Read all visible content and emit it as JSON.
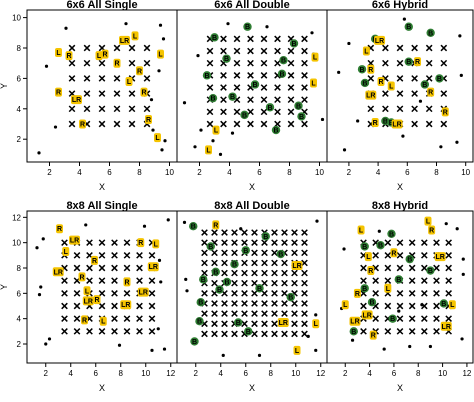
{
  "chart_data": [
    {
      "type": "scatter",
      "title": "6x6 All Single",
      "xlabel": "X",
      "ylabel": "Y",
      "xlim": [
        0.5,
        10.5
      ],
      "ylim": [
        0.5,
        10.5
      ],
      "xticks": [
        2,
        4,
        6,
        8,
        10
      ],
      "yticks": [
        2,
        4,
        6,
        8,
        10
      ],
      "grid": {
        "n": 6,
        "x": [
          3.5,
          4.5,
          5.5,
          6.5,
          7.5,
          8.5
        ],
        "y": [
          3,
          4,
          5,
          6,
          7,
          8
        ]
      },
      "points": [
        [
          1.3,
          1.1
        ],
        [
          2.4,
          2.8
        ],
        [
          1.8,
          6.8
        ],
        [
          3.1,
          9.3
        ],
        [
          7.1,
          9.6
        ],
        [
          9.6,
          8.6
        ],
        [
          9.4,
          9.5
        ],
        [
          9.3,
          6.5
        ],
        [
          9.7,
          1.9
        ],
        [
          9.5,
          1.3
        ],
        [
          8.9,
          2.6
        ],
        [
          8.8,
          4.6
        ]
      ],
      "tags": [
        {
          "x": 2.6,
          "y": 7.7,
          "label": "L"
        },
        {
          "x": 3.3,
          "y": 7.5,
          "label": "R"
        },
        {
          "x": 5.3,
          "y": 7.5,
          "label": "L"
        },
        {
          "x": 5.7,
          "y": 7.6,
          "label": "R"
        },
        {
          "x": 7.0,
          "y": 8.5,
          "label": "LR"
        },
        {
          "x": 7.7,
          "y": 8.8,
          "label": "L"
        },
        {
          "x": 6.5,
          "y": 7.0,
          "label": "R"
        },
        {
          "x": 8.0,
          "y": 6.5,
          "label": "R"
        },
        {
          "x": 9.4,
          "y": 7.6,
          "label": "L"
        },
        {
          "x": 7.3,
          "y": 5.8,
          "label": "L"
        },
        {
          "x": 8.3,
          "y": 5.1,
          "label": "R"
        },
        {
          "x": 2.6,
          "y": 5.1,
          "label": "R"
        },
        {
          "x": 3.8,
          "y": 4.6,
          "label": "LR"
        },
        {
          "x": 4.2,
          "y": 3.0,
          "label": "R"
        },
        {
          "x": 8.6,
          "y": 3.3,
          "label": "R"
        },
        {
          "x": 9.2,
          "y": 2.1,
          "label": "L"
        }
      ]
    },
    {
      "type": "scatter",
      "title": "6x6 All Double",
      "xlabel": "X",
      "ylabel": "",
      "xlim": [
        0.5,
        10.5
      ],
      "ylim": [
        0.5,
        10.5
      ],
      "xticks": [
        2,
        4,
        6,
        8,
        10
      ],
      "yticks": [],
      "grid": {
        "n": 8,
        "x": [
          2.7,
          3.6,
          4.5,
          5.4,
          6.3,
          7.2,
          8.1,
          9.0
        ],
        "y": [
          3,
          3.8,
          4.6,
          5.4,
          6.2,
          7.0,
          7.8,
          8.6
        ]
      },
      "points": [
        [
          1.0,
          4.4
        ],
        [
          1.9,
          7.5
        ],
        [
          2.1,
          2.6
        ],
        [
          4.2,
          2.4
        ],
        [
          3.9,
          9.6
        ],
        [
          6.5,
          9.4
        ],
        [
          9.5,
          9.0
        ],
        [
          9.6,
          7.6
        ],
        [
          10.2,
          3.3
        ],
        [
          3.4,
          1.0
        ],
        [
          1.7,
          1.5
        ],
        [
          2.9,
          1.9
        ]
      ],
      "tags": [
        {
          "x": 2.6,
          "y": 1.3,
          "label": "L"
        },
        {
          "x": 9.7,
          "y": 7.4,
          "label": "L"
        },
        {
          "x": 9.6,
          "y": 5.7,
          "label": "L"
        },
        {
          "x": 3.1,
          "y": 2.6,
          "label": "L"
        }
      ],
      "badges": [
        [
          3.0,
          8.7
        ],
        [
          3.8,
          7.3
        ],
        [
          2.5,
          6.2
        ],
        [
          2.9,
          4.7
        ],
        [
          4.2,
          4.8
        ],
        [
          5.7,
          5.6
        ],
        [
          6.7,
          4.1
        ],
        [
          7.5,
          6.3
        ],
        [
          8.3,
          8.3
        ],
        [
          7.6,
          7.2
        ],
        [
          5.2,
          9.4
        ],
        [
          8.6,
          4.2
        ],
        [
          8.8,
          3.5
        ],
        [
          5.0,
          3.6
        ],
        [
          7.1,
          2.6
        ]
      ]
    },
    {
      "type": "scatter",
      "title": "6x6 Hybrid",
      "xlabel": "X",
      "ylabel": "",
      "xlim": [
        0.5,
        10.5
      ],
      "ylim": [
        0.5,
        10.5
      ],
      "xticks": [
        2,
        4,
        6,
        8,
        10
      ],
      "yticks": [],
      "grid": {
        "n": 6,
        "x": [
          3.5,
          4.5,
          5.5,
          6.5,
          7.5,
          8.5
        ],
        "y": [
          3,
          4,
          5,
          6,
          7,
          8
        ]
      },
      "points": [
        [
          1.7,
          1.3
        ],
        [
          1.3,
          6.4
        ],
        [
          2.0,
          8.3
        ],
        [
          5.8,
          9.9
        ],
        [
          9.6,
          8.8
        ],
        [
          9.7,
          6.2
        ],
        [
          9.4,
          1.8
        ],
        [
          8.3,
          1.5
        ],
        [
          5.7,
          2.2
        ],
        [
          2.6,
          3.2
        ],
        [
          6.9,
          4.5
        ]
      ],
      "tags": [
        {
          "x": 3.2,
          "y": 7.8,
          "label": "L"
        },
        {
          "x": 4.1,
          "y": 8.5,
          "label": "LR"
        },
        {
          "x": 3.5,
          "y": 6.6,
          "label": "R"
        },
        {
          "x": 4.2,
          "y": 5.8,
          "label": "R"
        },
        {
          "x": 6.7,
          "y": 7.1,
          "label": "R"
        },
        {
          "x": 7.6,
          "y": 5.1,
          "label": "R"
        },
        {
          "x": 3.5,
          "y": 4.9,
          "label": "LR"
        },
        {
          "x": 3.8,
          "y": 3.1,
          "label": "R"
        },
        {
          "x": 5.3,
          "y": 3.0,
          "label": "LR"
        },
        {
          "x": 8.6,
          "y": 3.8,
          "label": "R"
        },
        {
          "x": 4.9,
          "y": 5.5,
          "label": "L"
        }
      ],
      "badges": [
        [
          6.1,
          9.4
        ],
        [
          3.8,
          8.6
        ],
        [
          2.9,
          6.6
        ],
        [
          3.1,
          5.7
        ],
        [
          7.6,
          9.0
        ],
        [
          8.2,
          6.0
        ],
        [
          4.5,
          3.2
        ],
        [
          4.9,
          3.1
        ],
        [
          7.2,
          5.6
        ],
        [
          6.1,
          7.1
        ]
      ]
    },
    {
      "type": "scatter",
      "title": "8x8 All Single",
      "xlabel": "X",
      "ylabel": "Y",
      "xlim": [
        0.5,
        12.5
      ],
      "ylim": [
        0.5,
        12.5
      ],
      "xticks": [
        2,
        4,
        6,
        8,
        10,
        12
      ],
      "yticks": [
        2,
        4,
        6,
        8,
        10,
        12
      ],
      "grid": {
        "n": 8,
        "x": [
          3.5,
          4.5,
          5.5,
          6.5,
          7.5,
          8.5,
          9.5,
          10.5
        ],
        "y": [
          3,
          4,
          5,
          6,
          7,
          8,
          9,
          10
        ]
      },
      "points": [
        [
          1.8,
          10.3
        ],
        [
          1.3,
          9.6
        ],
        [
          1.6,
          6.5
        ],
        [
          1.5,
          5.9
        ],
        [
          2.0,
          2.0
        ],
        [
          2.3,
          2.4
        ],
        [
          11.1,
          8.6
        ],
        [
          11.2,
          6.9
        ],
        [
          11.0,
          3.2
        ],
        [
          11.5,
          1.6
        ],
        [
          11.8,
          11.8
        ],
        [
          5.2,
          11.4
        ],
        [
          9.9,
          11.3
        ],
        [
          10.5,
          1.5
        ],
        [
          7.9,
          1.9
        ]
      ],
      "tags": [
        {
          "x": 3.1,
          "y": 11.1,
          "label": "R"
        },
        {
          "x": 4.3,
          "y": 10.2,
          "label": "LR"
        },
        {
          "x": 3.6,
          "y": 9.3,
          "label": "L"
        },
        {
          "x": 3.0,
          "y": 7.7,
          "label": "LR"
        },
        {
          "x": 5.3,
          "y": 6.2,
          "label": "L"
        },
        {
          "x": 5.4,
          "y": 5.4,
          "label": "LR"
        },
        {
          "x": 6.6,
          "y": 3.8,
          "label": "L"
        },
        {
          "x": 6.1,
          "y": 5.5,
          "label": "R"
        },
        {
          "x": 8.4,
          "y": 5.1,
          "label": "LR"
        },
        {
          "x": 9.6,
          "y": 10.0,
          "label": "R"
        },
        {
          "x": 10.8,
          "y": 9.9,
          "label": "L"
        },
        {
          "x": 10.6,
          "y": 8.1,
          "label": "LR"
        },
        {
          "x": 9.8,
          "y": 6.1,
          "label": "LR"
        },
        {
          "x": 8.5,
          "y": 6.9,
          "label": "R"
        },
        {
          "x": 5.1,
          "y": 3.9,
          "label": "R"
        },
        {
          "x": 5.9,
          "y": 8.6,
          "label": "R"
        },
        {
          "x": 4.9,
          "y": 7.3,
          "label": "R"
        }
      ]
    },
    {
      "type": "scatter",
      "title": "8x8 All Double",
      "xlabel": "X",
      "ylabel": "",
      "xlim": [
        0.5,
        12.5
      ],
      "ylim": [
        0.5,
        12.5
      ],
      "xticks": [
        2,
        4,
        6,
        8,
        10,
        12
      ],
      "yticks": [],
      "grid": {
        "n": 11,
        "x": [
          2.7,
          3.5,
          4.3,
          5.1,
          5.9,
          6.7,
          7.5,
          8.3,
          9.1,
          9.9,
          10.7
        ],
        "y": [
          2.8,
          3.6,
          4.4,
          5.2,
          6.0,
          6.8,
          7.6,
          8.4,
          9.2,
          10.0,
          10.8
        ]
      },
      "points": [
        [
          1.1,
          11.6
        ],
        [
          5.6,
          11.1
        ],
        [
          11.7,
          11.7
        ],
        [
          11.6,
          4.3
        ],
        [
          11.6,
          1.5
        ],
        [
          1.2,
          7.1
        ],
        [
          1.3,
          6.2
        ],
        [
          7.1,
          1.1
        ],
        [
          4.2,
          1.1
        ],
        [
          11.0,
          2.6
        ]
      ],
      "tags": [
        {
          "x": 10.1,
          "y": 8.2,
          "label": "LR"
        },
        {
          "x": 9.0,
          "y": 3.7,
          "label": "LR"
        },
        {
          "x": 10.1,
          "y": 1.5,
          "label": "L"
        },
        {
          "x": 3.6,
          "y": 11.4,
          "label": "R"
        },
        {
          "x": 11.6,
          "y": 3.6,
          "label": "L"
        }
      ],
      "badges": [
        [
          1.8,
          11.3
        ],
        [
          3.2,
          9.7
        ],
        [
          3.6,
          7.7
        ],
        [
          2.6,
          7.1
        ],
        [
          3.9,
          6.3
        ],
        [
          2.4,
          5.3
        ],
        [
          2.3,
          3.8
        ],
        [
          1.9,
          2.2
        ],
        [
          7.6,
          10.5
        ],
        [
          6.0,
          9.4
        ],
        [
          8.8,
          9.1
        ],
        [
          5.1,
          8.3
        ],
        [
          5.4,
          3.7
        ],
        [
          7.1,
          6.4
        ],
        [
          9.6,
          5.7
        ],
        [
          4.5,
          6.9
        ],
        [
          6.2,
          3.0
        ]
      ]
    },
    {
      "type": "scatter",
      "title": "8x8 Hybrid",
      "xlabel": "X",
      "ylabel": "",
      "xlim": [
        0.5,
        12.5
      ],
      "ylim": [
        0.5,
        12.5
      ],
      "xticks": [
        2,
        4,
        6,
        8,
        10,
        12
      ],
      "yticks": [],
      "grid": {
        "n": 8,
        "x": [
          3.5,
          4.5,
          5.5,
          6.5,
          7.5,
          8.5,
          9.5,
          10.5
        ],
        "y": [
          3,
          4,
          5,
          6,
          7,
          8,
          9,
          10
        ]
      },
      "points": [
        [
          1.9,
          9.5
        ],
        [
          1.7,
          4.8
        ],
        [
          2.6,
          2.3
        ],
        [
          4.8,
          10.9
        ],
        [
          10.3,
          11.5
        ],
        [
          11.2,
          11.1
        ],
        [
          11.7,
          8.7
        ],
        [
          11.7,
          7.5
        ],
        [
          11.6,
          2.4
        ],
        [
          9.0,
          1.8
        ],
        [
          5.2,
          1.6
        ],
        [
          7.3,
          1.8
        ],
        [
          8.3,
          5.1
        ],
        [
          6.4,
          4.6
        ]
      ],
      "tags": [
        {
          "x": 3.3,
          "y": 11.0,
          "label": "L"
        },
        {
          "x": 9.1,
          "y": 11.0,
          "label": "R"
        },
        {
          "x": 8.8,
          "y": 11.7,
          "label": "L"
        },
        {
          "x": 3.9,
          "y": 8.9,
          "label": "L"
        },
        {
          "x": 6.0,
          "y": 9.2,
          "label": "R"
        },
        {
          "x": 9.8,
          "y": 8.9,
          "label": "LR"
        },
        {
          "x": 3.0,
          "y": 6.0,
          "label": "R"
        },
        {
          "x": 2.0,
          "y": 5.1,
          "label": "L"
        },
        {
          "x": 3.8,
          "y": 4.3,
          "label": "LR"
        },
        {
          "x": 2.8,
          "y": 3.8,
          "label": "LR"
        },
        {
          "x": 4.3,
          "y": 2.7,
          "label": "R"
        },
        {
          "x": 5.5,
          "y": 6.4,
          "label": "L"
        },
        {
          "x": 10.8,
          "y": 5.1,
          "label": "L"
        },
        {
          "x": 10.3,
          "y": 3.4,
          "label": "LR"
        },
        {
          "x": 4.1,
          "y": 7.8,
          "label": "R"
        }
      ],
      "badges": [
        [
          4.9,
          9.8
        ],
        [
          3.6,
          9.7
        ],
        [
          2.7,
          3.0
        ],
        [
          5.8,
          10.7
        ],
        [
          9.0,
          7.8
        ],
        [
          10.1,
          5.2
        ],
        [
          3.6,
          6.4
        ],
        [
          4.2,
          5.3
        ],
        [
          7.3,
          8.7
        ],
        [
          5.9,
          4.0
        ],
        [
          6.4,
          7.1
        ]
      ]
    }
  ],
  "badge_text": "B"
}
